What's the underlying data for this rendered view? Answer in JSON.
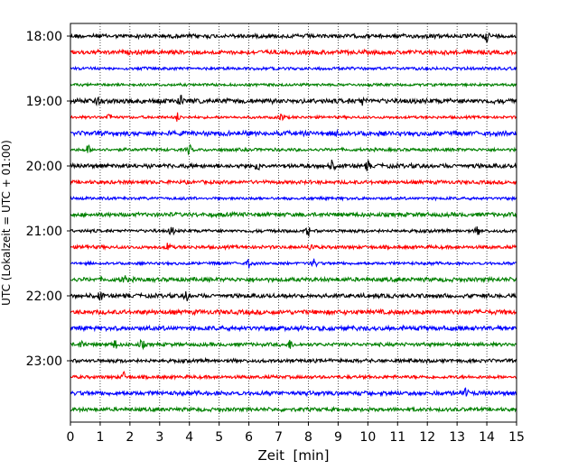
{
  "chart_data": {
    "type": "line",
    "title": "",
    "xlabel": "Zeit  [min]",
    "ylabel": "UTC (Lokalzeit = UTC + 01:00)",
    "xlim": [
      0,
      15
    ],
    "xticks": [
      "0",
      "1",
      "2",
      "3",
      "4",
      "5",
      "6",
      "7",
      "8",
      "9",
      "10",
      "11",
      "12",
      "13",
      "14",
      "15"
    ],
    "yticks": [
      "18:00",
      "19:00",
      "20:00",
      "21:00",
      "22:00",
      "23:00"
    ],
    "vertical_gridlines": "dotted, every 1 min",
    "trace_interval_minutes": 15,
    "trace_start": "18:00",
    "trace_count": 24,
    "trace_colors": [
      "#000000",
      "#ff0000",
      "#0000ff",
      "#008000"
    ],
    "events": [
      {
        "trace": 0,
        "x": 14.0
      },
      {
        "trace": 4,
        "x": 0.9
      },
      {
        "trace": 4,
        "x": 3.7
      },
      {
        "trace": 4,
        "x": 9.8
      },
      {
        "trace": 5,
        "x": 1.3
      },
      {
        "trace": 5,
        "x": 3.6
      },
      {
        "trace": 5,
        "x": 7.1
      },
      {
        "trace": 6,
        "x": 9.0
      },
      {
        "trace": 7,
        "x": 0.6
      },
      {
        "trace": 7,
        "x": 4.0
      },
      {
        "trace": 8,
        "x": 6.3
      },
      {
        "trace": 8,
        "x": 8.8
      },
      {
        "trace": 8,
        "x": 10.0
      },
      {
        "trace": 12,
        "x": 3.4
      },
      {
        "trace": 12,
        "x": 8.0
      },
      {
        "trace": 12,
        "x": 13.7
      },
      {
        "trace": 13,
        "x": 0.5
      },
      {
        "trace": 13,
        "x": 3.3
      },
      {
        "trace": 13,
        "x": 8.1
      },
      {
        "trace": 14,
        "x": 6.0
      },
      {
        "trace": 14,
        "x": 8.2
      },
      {
        "trace": 15,
        "x": 1.8
      },
      {
        "trace": 16,
        "x": 1.0
      },
      {
        "trace": 16,
        "x": 3.9
      },
      {
        "trace": 19,
        "x": 0.4
      },
      {
        "trace": 19,
        "x": 1.5
      },
      {
        "trace": 19,
        "x": 2.4
      },
      {
        "trace": 19,
        "x": 7.4
      },
      {
        "trace": 21,
        "x": 1.8
      },
      {
        "trace": 22,
        "x": 13.3
      }
    ]
  }
}
